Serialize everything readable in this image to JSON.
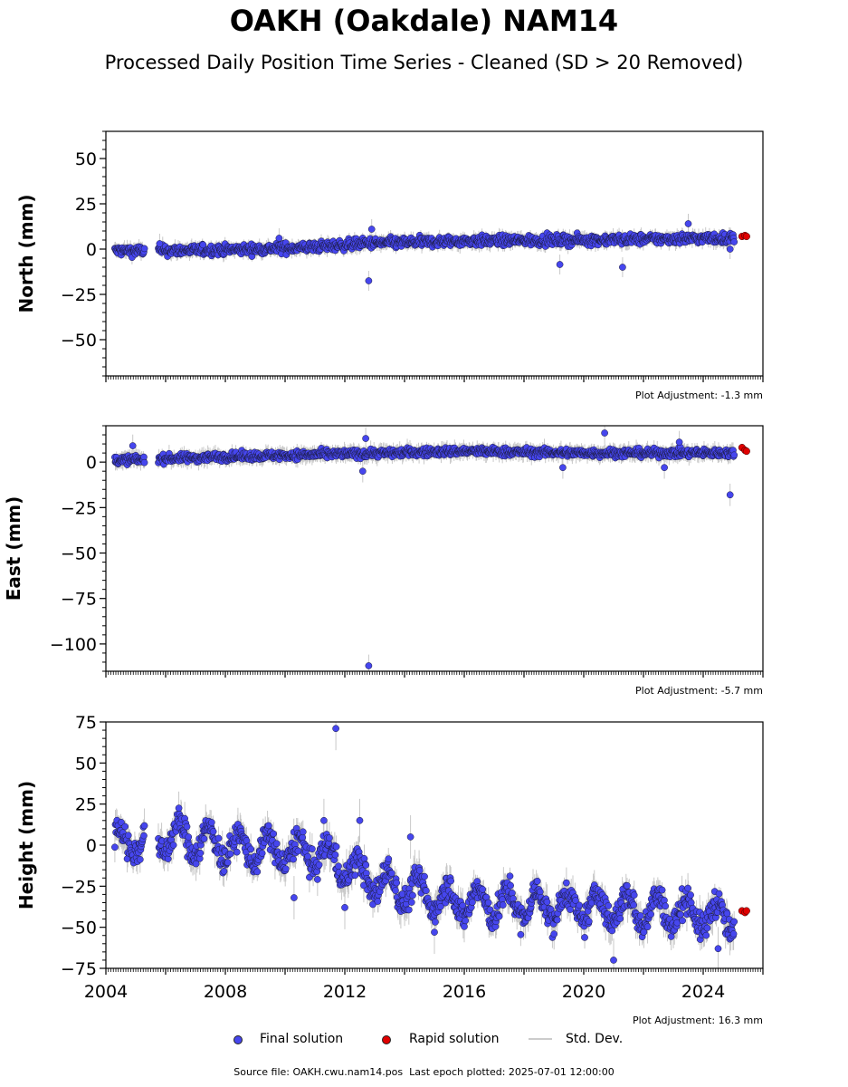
{
  "title": "OAKH (Oakdale) NAM14",
  "subtitle": "Processed Daily Position Time Series - Cleaned (SD > 20 Removed)",
  "colors": {
    "final": "#4646ee",
    "rapid": "#e00000",
    "stddev": "#c8c8c8"
  },
  "legend": {
    "final": "Final solution",
    "rapid": "Rapid solution",
    "stddev": "Std. Dev."
  },
  "footer": {
    "source_label": "Source file: OAKH.cwu.nam14.pos",
    "last_epoch_label": "Last epoch plotted: 2025-07-01 12:00:00"
  },
  "chart_data": [
    {
      "type": "scatter",
      "ylabel": "North (mm)",
      "adjustment": "Plot Adjustment: -1.3 mm",
      "xlim": [
        2004.0,
        2026.0
      ],
      "ylim": [
        -70,
        65
      ],
      "yticks": [
        -50,
        -25,
        0,
        25,
        50
      ],
      "yminor": 5,
      "trend": [
        [
          2004.3,
          -1
        ],
        [
          2008.0,
          -0.5
        ],
        [
          2010.8,
          1
        ],
        [
          2011.8,
          2
        ],
        [
          2012.5,
          3
        ],
        [
          2016.0,
          4.5
        ],
        [
          2020.0,
          5
        ],
        [
          2024.0,
          6
        ],
        [
          2025.0,
          6
        ]
      ],
      "noise": 2.0,
      "err": 2.5,
      "outliers": [
        [
          2005.8,
          3
        ],
        [
          2009.8,
          6
        ],
        [
          2012.8,
          -17.5
        ],
        [
          2012.9,
          11
        ],
        [
          2019.2,
          -8.5
        ],
        [
          2021.3,
          -10
        ],
        [
          2023.5,
          14
        ],
        [
          2024.9,
          0
        ]
      ],
      "rapid": [
        [
          2025.3,
          7
        ],
        [
          2025.4,
          7.5
        ],
        [
          2025.45,
          7
        ]
      ]
    },
    {
      "type": "scatter",
      "ylabel": "East (mm)",
      "adjustment": "Plot Adjustment: -5.7 mm",
      "xlim": [
        2004.0,
        2026.0
      ],
      "ylim": [
        -115,
        20
      ],
      "yticks": [
        -100,
        -75,
        -50,
        -25,
        0
      ],
      "yminor": 5,
      "trend": [
        [
          2004.3,
          1
        ],
        [
          2008.0,
          3
        ],
        [
          2012.0,
          4.5
        ],
        [
          2016.0,
          6
        ],
        [
          2020.0,
          5
        ],
        [
          2024.0,
          5
        ],
        [
          2025.0,
          5
        ]
      ],
      "noise": 1.6,
      "err": 2.8,
      "outliers": [
        [
          2004.9,
          9
        ],
        [
          2012.7,
          13
        ],
        [
          2012.6,
          -5
        ],
        [
          2012.8,
          -112
        ],
        [
          2019.3,
          -3
        ],
        [
          2020.7,
          16
        ],
        [
          2022.7,
          -3
        ],
        [
          2023.2,
          11
        ],
        [
          2024.9,
          -18
        ]
      ],
      "rapid": [
        [
          2025.3,
          8
        ],
        [
          2025.4,
          6.5
        ],
        [
          2025.45,
          6
        ]
      ]
    },
    {
      "type": "scatter",
      "ylabel": "Height (mm)",
      "adjustment": "Plot Adjustment: 16.3 mm",
      "xlim": [
        2004.0,
        2026.0
      ],
      "ylim": [
        -75,
        75
      ],
      "yticks": [
        -75,
        -50,
        -25,
        0,
        25,
        50,
        75
      ],
      "yminor": 5,
      "xticks": [
        2004,
        2008,
        2012,
        2016,
        2020,
        2024
      ],
      "trend": [
        [
          2004.3,
          2
        ],
        [
          2006.5,
          5
        ],
        [
          2008.5,
          -2
        ],
        [
          2011.0,
          -5
        ],
        [
          2011.8,
          -10
        ],
        [
          2012.5,
          -18
        ],
        [
          2013.5,
          -25
        ],
        [
          2016.0,
          -35
        ],
        [
          2020.0,
          -38
        ],
        [
          2023.0,
          -40
        ],
        [
          2025.0,
          -45
        ]
      ],
      "noise": 6,
      "seasonal": 9,
      "err": 6,
      "outliers": [
        [
          2011.7,
          71
        ],
        [
          2011.3,
          15
        ],
        [
          2012.5,
          15
        ],
        [
          2014.2,
          5
        ],
        [
          2010.3,
          -32
        ],
        [
          2012.0,
          -38
        ],
        [
          2015.0,
          -53
        ],
        [
          2021.0,
          -70
        ],
        [
          2024.5,
          -63
        ]
      ],
      "rapid": [
        [
          2025.3,
          -40
        ],
        [
          2025.4,
          -41
        ],
        [
          2025.45,
          -40
        ]
      ]
    }
  ]
}
